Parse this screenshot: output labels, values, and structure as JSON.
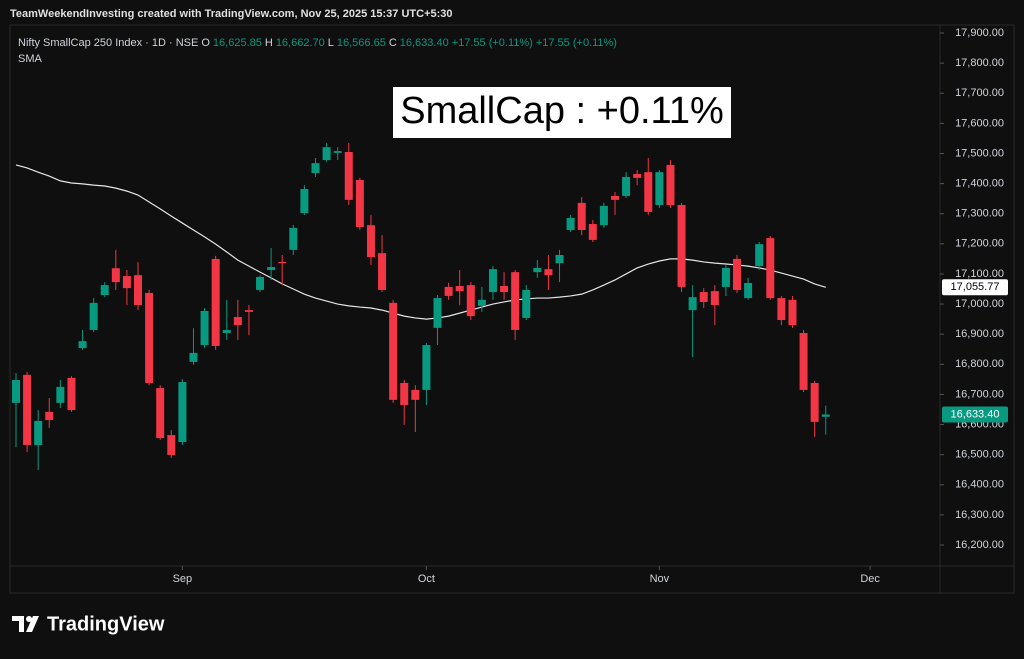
{
  "header": {
    "watermark": "TeamWeekendInvesting created with TradingView.com, Nov 25, 2025 15:37 UTC+5:30"
  },
  "footer": {
    "brand": "TradingView"
  },
  "chart_data": {
    "type": "candlestick",
    "title": "Nifty SmallCap 250 Index · 1D · NSE",
    "ohlc_legend": [
      {
        "label": "O",
        "value": "16,625.85"
      },
      {
        "label": "H",
        "value": "16,662.70"
      },
      {
        "label": "L",
        "value": "16,566.65"
      },
      {
        "label": "C",
        "value": "16,633.40"
      }
    ],
    "change_labels": [
      "+17.55 (+0.11%)",
      "+17.55 (+0.11%)"
    ],
    "annotation": "SmallCap : +0.11%",
    "up_color": "#089981",
    "down_color": "#f23645",
    "open": [
      16672,
      16765,
      16532,
      16642,
      16672,
      16755,
      16854,
      16914,
      17030,
      17119,
      17093,
      17096,
      17037,
      16721,
      16565,
      16542,
      16808,
      16864,
      17150,
      16904,
      16957,
      16980,
      17047,
      17113,
      17140,
      17180,
      17302,
      17435,
      17478,
      17502,
      17505,
      17412,
      17262,
      17169,
      17004,
      16738,
      16715,
      16715,
      16921,
      17057,
      17060,
      17063,
      16994,
      17040,
      17060,
      17106,
      16954,
      17106,
      17116,
      17136,
      17246,
      17336,
      17266,
      17262,
      17359,
      17359,
      17432,
      17438,
      17329,
      17462,
      17329,
      16980,
      17040,
      17043,
      17057,
      17150,
      17020,
      17126,
      17219,
      17020,
      17014,
      16904,
      16738,
      16625.85
    ],
    "high": [
      16771,
      16775,
      16648,
      16688,
      16748,
      16761,
      16914,
      17020,
      17073,
      17180,
      17113,
      17139,
      17047,
      16731,
      16582,
      16751,
      16920,
      16987,
      17160,
      17014,
      17014,
      16997,
      17096,
      17186,
      17163,
      17263,
      17395,
      17485,
      17535,
      17521,
      17535,
      17419,
      17296,
      17229,
      17014,
      16748,
      16731,
      16871,
      17030,
      17070,
      17113,
      17073,
      17057,
      17126,
      17106,
      17113,
      17063,
      17146,
      17163,
      17180,
      17296,
      17355,
      17279,
      17336,
      17372,
      17438,
      17445,
      17485,
      17445,
      17478,
      17336,
      17063,
      17053,
      17063,
      17130,
      17163,
      17087,
      17206,
      17226,
      17027,
      17027,
      16914,
      16745,
      16662.7
    ],
    "low": [
      16525,
      16509,
      16449,
      16589,
      16655,
      16642,
      16848,
      16907,
      17023,
      17047,
      16997,
      16980,
      16731,
      16549,
      16489,
      16532,
      16798,
      16854,
      16848,
      16881,
      16881,
      16897,
      17040,
      17080,
      17063,
      17163,
      17296,
      17422,
      17472,
      17478,
      17329,
      17246,
      17130,
      17040,
      16672,
      16599,
      16575,
      16665,
      16864,
      17014,
      16997,
      16947,
      16974,
      17014,
      17014,
      16881,
      16947,
      17087,
      17047,
      17073,
      17239,
      17229,
      17206,
      17253,
      17296,
      17352,
      17395,
      17296,
      17319,
      17319,
      17040,
      16824,
      16987,
      16930,
      17027,
      17037,
      17014,
      17113,
      17014,
      16930,
      16921,
      16708,
      16559,
      16566.65
    ],
    "close": [
      16748,
      16532,
      16612,
      16615,
      16725,
      16648,
      16877,
      17004,
      17063,
      17073,
      17053,
      16997,
      16738,
      16555,
      16499,
      16741,
      16838,
      16977,
      16861,
      16914,
      16930,
      16974,
      17090,
      17123,
      17136,
      17253,
      17382,
      17468,
      17521,
      17508,
      17346,
      17256,
      17156,
      17047,
      16682,
      16665,
      16682,
      16864,
      17020,
      17027,
      17043,
      16960,
      17014,
      17116,
      17040,
      16914,
      17047,
      17120,
      17096,
      17163,
      17286,
      17246,
      17213,
      17326,
      17346,
      17422,
      17419,
      17306,
      17438,
      17329,
      17057,
      17023,
      17007,
      16997,
      17120,
      17047,
      17070,
      17199,
      17020,
      16947,
      16930,
      16715,
      16609,
      16633.4
    ],
    "indicator": {
      "name": "SMA",
      "color": "#e6e6e6",
      "values": [
        17462,
        17452,
        17438,
        17425,
        17409,
        17402,
        17399,
        17395,
        17392,
        17385,
        17375,
        17362,
        17339,
        17316,
        17292,
        17269,
        17246,
        17223,
        17199,
        17173,
        17146,
        17126,
        17106,
        17087,
        17067,
        17050,
        17033,
        17020,
        17010,
        17000,
        16994,
        16990,
        16987,
        16980,
        16970,
        16960,
        16954,
        16950,
        16954,
        16960,
        16970,
        16980,
        16990,
        17000,
        17007,
        17014,
        17017,
        17020,
        17020,
        17023,
        17027,
        17033,
        17047,
        17063,
        17080,
        17100,
        17120,
        17133,
        17143,
        17150,
        17150,
        17146,
        17140,
        17136,
        17133,
        17130,
        17126,
        17120,
        17113,
        17103,
        17093,
        17083,
        17067,
        17055.77
      ]
    },
    "price_tags": [
      {
        "value": 17055.77,
        "label": "17,055.77",
        "color": "#ffffff",
        "text_color": "#000000"
      },
      {
        "value": 16633.4,
        "label": "16,633.40",
        "color": "#089981",
        "text_color": "#ffffff"
      }
    ],
    "xlim": [
      -0.54,
      83.3
    ],
    "xticks": [
      {
        "value": 15,
        "label": "Sep"
      },
      {
        "value": 37,
        "label": "Oct"
      },
      {
        "value": 58,
        "label": "Nov"
      },
      {
        "value": 77,
        "label": "Dec"
      }
    ],
    "ylim": [
      16040.7,
      17926.6
    ],
    "yticks": [
      {
        "value": 16200,
        "label": "16,200.00"
      },
      {
        "value": 16300,
        "label": "16,300.00"
      },
      {
        "value": 16400,
        "label": "16,400.00"
      },
      {
        "value": 16500,
        "label": "16,500.00"
      },
      {
        "value": 16600,
        "label": "16,600.00"
      },
      {
        "value": 16700,
        "label": "16,700.00"
      },
      {
        "value": 16800,
        "label": "16,800.00"
      },
      {
        "value": 16900,
        "label": "16,900.00"
      },
      {
        "value": 17000,
        "label": "17,000.00"
      },
      {
        "value": 17100,
        "label": "17,100.00"
      },
      {
        "value": 17200,
        "label": "17,200.00"
      },
      {
        "value": 17300,
        "label": "17,300.00"
      },
      {
        "value": 17400,
        "label": "17,400.00"
      },
      {
        "value": 17500,
        "label": "17,500.00"
      },
      {
        "value": 17600,
        "label": "17,600.00"
      },
      {
        "value": 17700,
        "label": "17,700.00"
      },
      {
        "value": 17800,
        "label": "17,800.00"
      },
      {
        "value": 17900,
        "label": "17,900.00"
      }
    ],
    "grid": false
  }
}
